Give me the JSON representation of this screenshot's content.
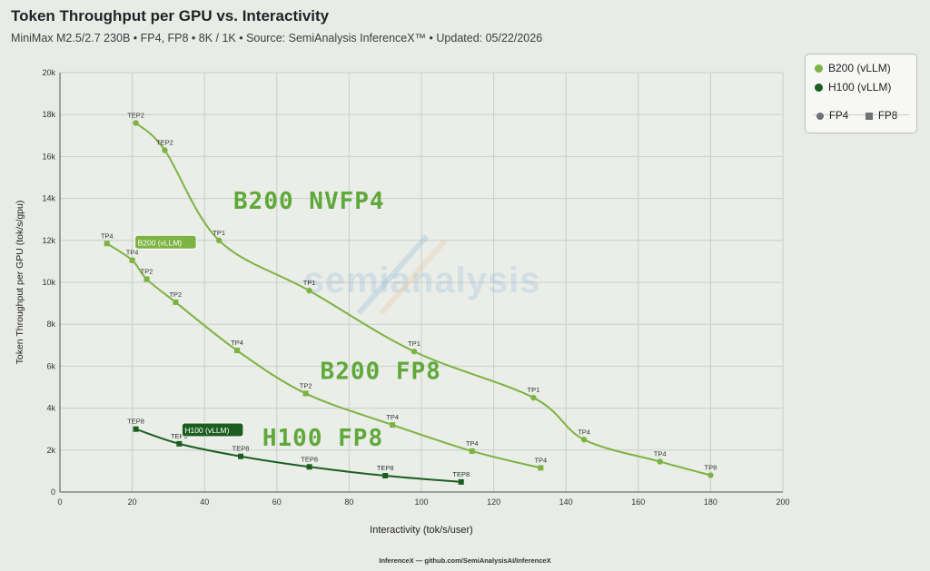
{
  "header": {
    "title": "Token Throughput per GPU vs. Interactivity",
    "subtitle": "MiniMax M2.5/2.7 230B • FP4, FP8 • 8K / 1K • Source: SemiAnalysis InferenceX™ • Updated: 05/22/2026"
  },
  "legend": {
    "items": [
      {
        "label": "B200 (vLLM)",
        "color": "#7cb342"
      },
      {
        "label": "H100 (vLLM)",
        "color": "#1b5e20"
      }
    ],
    "shapes": [
      {
        "label": "FP4",
        "shape": "circle"
      },
      {
        "label": "FP8",
        "shape": "square"
      }
    ]
  },
  "watermark": "semianalysis",
  "footer": "InferenceX — github.com/SemiAnalysisAI/InferenceX",
  "colors": {
    "b200": "#7cb342",
    "h100": "#1b5e20",
    "handwriting": "#5fa83a",
    "grid": "#c9cfc8"
  },
  "chart_data": {
    "type": "line",
    "title": "Token Throughput per GPU vs. Interactivity",
    "xlabel": "Interactivity (tok/s/user)",
    "ylabel": "Token Throughput per GPU (tok/s/gpu)",
    "xlim": [
      0,
      200
    ],
    "ylim": [
      0,
      20000
    ],
    "xticks": [
      "0",
      "20",
      "40",
      "60",
      "80",
      "100",
      "120",
      "140",
      "160",
      "180",
      "200"
    ],
    "yticks": [
      "0",
      "2k",
      "4k",
      "6k",
      "8k",
      "10k",
      "12k",
      "14k",
      "16k",
      "18k",
      "20k"
    ],
    "grid": true,
    "legend_position": "top-right",
    "series": [
      {
        "name": "B200 (vLLM)",
        "precision": "FP4",
        "color": "#7cb342",
        "marker": "circle",
        "points": [
          {
            "x": 21,
            "y": 17600,
            "label": "TEP2"
          },
          {
            "x": 29,
            "y": 16300,
            "label": "TEP2"
          },
          {
            "x": 44,
            "y": 12000,
            "label": "TP1"
          },
          {
            "x": 69,
            "y": 9600,
            "label": "TP1"
          },
          {
            "x": 98,
            "y": 6700,
            "label": "TP1"
          },
          {
            "x": 131,
            "y": 4500,
            "label": "TP1"
          },
          {
            "x": 145,
            "y": 2500,
            "label": "TP4"
          },
          {
            "x": 166,
            "y": 1450,
            "label": "TP4"
          },
          {
            "x": 180,
            "y": 800,
            "label": "TP8"
          }
        ]
      },
      {
        "name": "B200 (vLLM)",
        "precision": "FP8",
        "color": "#7cb342",
        "marker": "square",
        "points": [
          {
            "x": 13,
            "y": 11850,
            "label": "TP4"
          },
          {
            "x": 20,
            "y": 11050,
            "label": "TP4"
          },
          {
            "x": 24,
            "y": 10150,
            "label": "TP2"
          },
          {
            "x": 32,
            "y": 9050,
            "label": "TP2"
          },
          {
            "x": 49,
            "y": 6750,
            "label": "TP4"
          },
          {
            "x": 68,
            "y": 4700,
            "label": "TP2"
          },
          {
            "x": 92,
            "y": 3200,
            "label": "TP4"
          },
          {
            "x": 114,
            "y": 1950,
            "label": "TP4"
          },
          {
            "x": 133,
            "y": 1150,
            "label": "TP4"
          }
        ]
      },
      {
        "name": "H100 (vLLM)",
        "precision": "FP8",
        "color": "#1b5e20",
        "marker": "square",
        "points": [
          {
            "x": 21,
            "y": 3000,
            "label": "TEP8"
          },
          {
            "x": 33,
            "y": 2300,
            "label": "TEP8"
          },
          {
            "x": 50,
            "y": 1700,
            "label": "TEP8"
          },
          {
            "x": 69,
            "y": 1200,
            "label": "TEP8"
          },
          {
            "x": 90,
            "y": 780,
            "label": "TEP8"
          },
          {
            "x": 111,
            "y": 480,
            "label": "TEP8"
          }
        ]
      }
    ],
    "tooltips": [
      {
        "text": "B200 (vLLM)",
        "x": 20,
        "y": 11850,
        "color": "#7cb342"
      },
      {
        "text": "H100 (vLLM)",
        "x": 33,
        "y": 2900,
        "color": "#1b5e20"
      }
    ],
    "annotations": [
      {
        "text": "B200 NVFP4",
        "x": 48,
        "y": 13500,
        "color": "#5fa83a"
      },
      {
        "text": "B200 FP8",
        "x": 72,
        "y": 5400,
        "color": "#5fa83a"
      },
      {
        "text": "H100 FP8",
        "x": 56,
        "y": 2200,
        "color": "#5fa83a"
      }
    ]
  }
}
